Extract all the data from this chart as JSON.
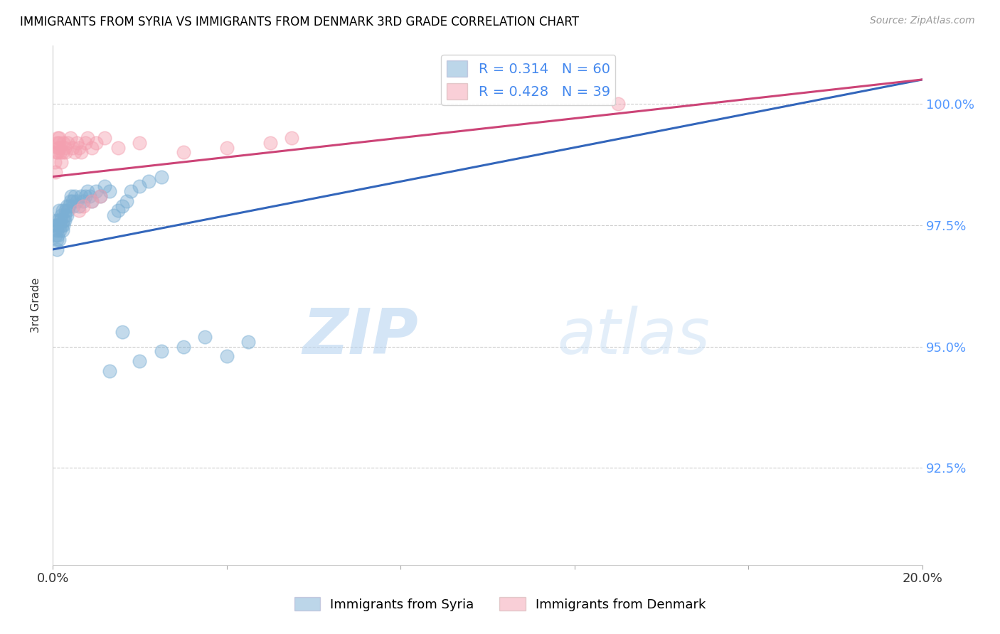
{
  "title": "IMMIGRANTS FROM SYRIA VS IMMIGRANTS FROM DENMARK 3RD GRADE CORRELATION CHART",
  "source": "Source: ZipAtlas.com",
  "ylabel": "3rd Grade",
  "x_min": 0.0,
  "x_max": 20.0,
  "y_min": 90.5,
  "y_max": 101.2,
  "y_ticks": [
    92.5,
    95.0,
    97.5,
    100.0
  ],
  "y_tick_labels": [
    "92.5%",
    "95.0%",
    "97.5%",
    "100.0%"
  ],
  "watermark_zip": "ZIP",
  "watermark_atlas": "atlas",
  "legend_R_syria": "R = 0.314",
  "legend_N_syria": "N = 60",
  "legend_R_denmark": "R = 0.428",
  "legend_N_denmark": "N = 39",
  "color_syria": "#7BAFD4",
  "color_denmark": "#F4A0B0",
  "color_line_syria": "#3366BB",
  "color_line_denmark": "#CC4477",
  "syria_line_x0": 0.0,
  "syria_line_y0": 97.0,
  "syria_line_x1": 20.0,
  "syria_line_y1": 100.5,
  "denmark_line_x0": 0.0,
  "denmark_line_y0": 98.5,
  "denmark_line_x1": 20.0,
  "denmark_line_y1": 100.5,
  "syria_x": [
    0.05,
    0.07,
    0.08,
    0.09,
    0.1,
    0.1,
    0.11,
    0.12,
    0.13,
    0.14,
    0.15,
    0.16,
    0.17,
    0.18,
    0.2,
    0.21,
    0.22,
    0.23,
    0.24,
    0.25,
    0.27,
    0.28,
    0.3,
    0.32,
    0.33,
    0.35,
    0.37,
    0.4,
    0.42,
    0.45,
    0.48,
    0.5,
    0.55,
    0.6,
    0.65,
    0.7,
    0.75,
    0.8,
    0.85,
    0.9,
    1.0,
    1.1,
    1.2,
    1.3,
    1.4,
    1.5,
    1.6,
    1.7,
    1.8,
    2.0,
    2.2,
    2.5,
    3.0,
    3.5,
    4.0,
    4.5,
    1.3,
    1.6,
    2.0,
    2.5
  ],
  "syria_y": [
    97.5,
    97.3,
    97.6,
    97.2,
    97.4,
    97.0,
    97.5,
    97.3,
    97.6,
    97.2,
    97.8,
    97.5,
    97.4,
    97.6,
    97.7,
    97.5,
    97.8,
    97.4,
    97.6,
    97.5,
    97.7,
    97.6,
    97.8,
    97.7,
    97.9,
    97.8,
    97.9,
    98.0,
    98.1,
    98.0,
    97.9,
    98.1,
    98.0,
    97.9,
    98.1,
    98.0,
    98.1,
    98.2,
    98.1,
    98.0,
    98.2,
    98.1,
    98.3,
    98.2,
    97.7,
    97.8,
    97.9,
    98.0,
    98.2,
    98.3,
    98.4,
    98.5,
    95.0,
    95.2,
    94.8,
    95.1,
    94.5,
    95.3,
    94.7,
    94.9
  ],
  "denmark_x": [
    0.05,
    0.07,
    0.08,
    0.1,
    0.11,
    0.12,
    0.13,
    0.14,
    0.15,
    0.17,
    0.18,
    0.2,
    0.22,
    0.25,
    0.28,
    0.3,
    0.35,
    0.4,
    0.45,
    0.5,
    0.55,
    0.6,
    0.65,
    0.75,
    0.8,
    0.9,
    1.0,
    1.2,
    1.5,
    2.0,
    3.0,
    4.0,
    5.0,
    5.5,
    13.0,
    0.6,
    0.7,
    0.9,
    1.1
  ],
  "denmark_y": [
    98.8,
    98.6,
    99.0,
    99.2,
    99.3,
    99.0,
    99.1,
    99.2,
    99.3,
    99.1,
    99.0,
    98.8,
    99.0,
    99.2,
    99.1,
    99.0,
    99.2,
    99.3,
    99.1,
    99.0,
    99.2,
    99.1,
    99.0,
    99.2,
    99.3,
    99.1,
    99.2,
    99.3,
    99.1,
    99.2,
    99.0,
    99.1,
    99.2,
    99.3,
    100.0,
    97.8,
    97.9,
    98.0,
    98.1
  ]
}
